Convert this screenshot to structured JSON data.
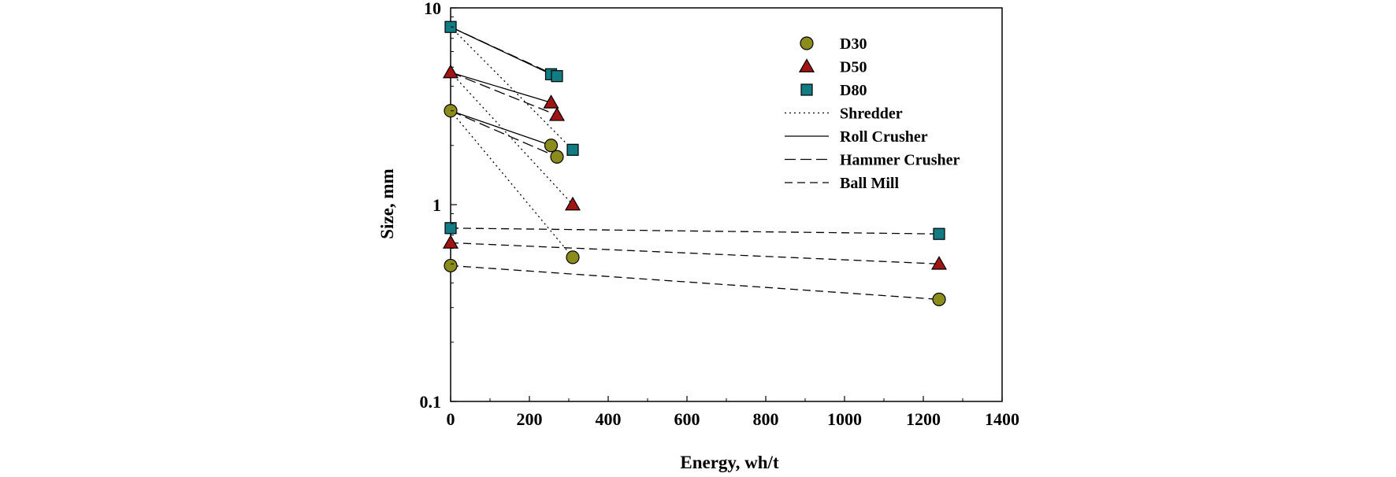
{
  "chart_data": {
    "type": "scatter",
    "title": "",
    "xlabel": "Energy, wh/t",
    "ylabel": "Size, mm",
    "xlim": [
      0,
      1400
    ],
    "ylim": [
      0.1,
      10
    ],
    "yscale": "log",
    "grid": false,
    "legend_position": "top-right",
    "x_ticks": [
      "0",
      "200",
      "400",
      "600",
      "800",
      "1000",
      "1200",
      "1400"
    ],
    "y_ticks": [
      "0.1",
      "1",
      "10"
    ],
    "series": [
      {
        "name": "D30",
        "marker": "circle",
        "color": "#8c8c1c",
        "points": [
          [
            0,
            3.0
          ],
          [
            255,
            2.0
          ],
          [
            270,
            1.75
          ],
          [
            310,
            0.54
          ],
          [
            0,
            0.49
          ],
          [
            1240,
            0.33
          ]
        ]
      },
      {
        "name": "D50",
        "marker": "triangle",
        "color": "#a01414",
        "points": [
          [
            0,
            4.7
          ],
          [
            255,
            3.3
          ],
          [
            270,
            2.85
          ],
          [
            310,
            1.0
          ],
          [
            0,
            0.64
          ],
          [
            1240,
            0.5
          ]
        ]
      },
      {
        "name": "D80",
        "marker": "square",
        "color": "#127c84",
        "points": [
          [
            0,
            8.0
          ],
          [
            255,
            4.6
          ],
          [
            270,
            4.5
          ],
          [
            310,
            1.9
          ],
          [
            0,
            0.76
          ],
          [
            1240,
            0.71
          ]
        ]
      }
    ],
    "lines": [
      {
        "name": "Shredder",
        "style": "dotted",
        "segments": [
          [
            [
              0,
              3.0
            ],
            [
              310,
              0.54
            ]
          ],
          [
            [
              0,
              4.7
            ],
            [
              310,
              1.0
            ]
          ],
          [
            [
              0,
              8.0
            ],
            [
              310,
              1.9
            ]
          ]
        ]
      },
      {
        "name": "Roll Crusher",
        "style": "solid",
        "segments": [
          [
            [
              0,
              3.0
            ],
            [
              255,
              2.0
            ]
          ],
          [
            [
              0,
              4.7
            ],
            [
              255,
              3.3
            ]
          ],
          [
            [
              0,
              8.0
            ],
            [
              255,
              4.6
            ]
          ]
        ]
      },
      {
        "name": "Hammer Crusher",
        "style": "long-dash",
        "segments": [
          [
            [
              0,
              3.0
            ],
            [
              270,
              1.75
            ]
          ],
          [
            [
              0,
              4.7
            ],
            [
              270,
              2.85
            ]
          ],
          [
            [
              0,
              8.0
            ],
            [
              270,
              4.5
            ]
          ]
        ]
      },
      {
        "name": "Ball Mill",
        "style": "dash",
        "segments": [
          [
            [
              0,
              0.49
            ],
            [
              1240,
              0.33
            ]
          ],
          [
            [
              0,
              0.64
            ],
            [
              1240,
              0.5
            ]
          ],
          [
            [
              0,
              0.76
            ],
            [
              1240,
              0.71
            ]
          ]
        ]
      }
    ],
    "legend": [
      "D30",
      "D50",
      "D80",
      "Shredder",
      "Roll Crusher",
      "Hammer Crusher",
      "Ball Mill"
    ]
  }
}
